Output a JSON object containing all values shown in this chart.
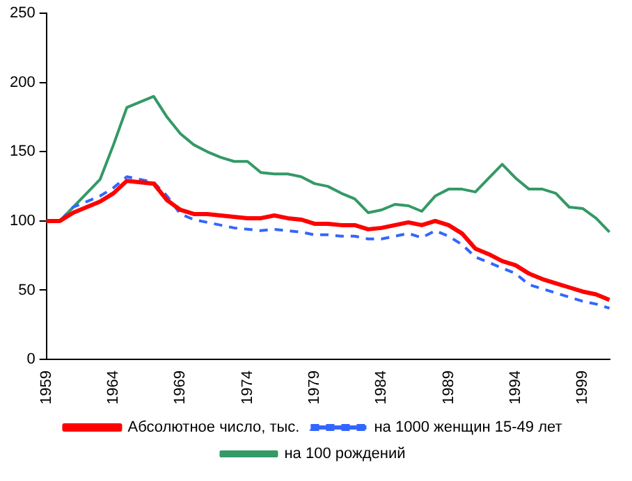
{
  "chart_data": {
    "type": "line",
    "categories": [
      "1959",
      null,
      null,
      null,
      null,
      "1964",
      null,
      null,
      null,
      null,
      "1969",
      null,
      null,
      null,
      null,
      "1974",
      null,
      null,
      null,
      null,
      "1979",
      null,
      null,
      null,
      null,
      "1984",
      null,
      null,
      null,
      null,
      "1989",
      null,
      null,
      null,
      null,
      "1994",
      null,
      null,
      null,
      null,
      "1999",
      null,
      null
    ],
    "series": [
      {
        "name": "Абсолютное число, тыс.",
        "color": "#ff0000",
        "line_style": "solid",
        "values": [
          100,
          100,
          106,
          110,
          114,
          120,
          129,
          128,
          127,
          115,
          108,
          105,
          105,
          104,
          103,
          102,
          102,
          104,
          102,
          101,
          98,
          98,
          97,
          97,
          94,
          95,
          97,
          99,
          97,
          100,
          97,
          91,
          80,
          76,
          71,
          68,
          62,
          58,
          55,
          52,
          49,
          47,
          43
        ]
      },
      {
        "name": "на 1000 женщин 15-49 лет",
        "color": "#3366ff",
        "line_style": "dashed",
        "values": [
          100,
          100,
          110,
          114,
          118,
          124,
          132,
          130,
          128,
          118,
          105,
          101,
          99,
          97,
          95,
          94,
          93,
          94,
          93,
          92,
          90,
          90,
          89,
          89,
          87,
          87,
          89,
          91,
          88,
          93,
          89,
          83,
          74,
          70,
          66,
          62,
          54,
          51,
          48,
          45,
          42,
          40,
          37
        ]
      },
      {
        "name": "на 100 рождений",
        "color": "#339966",
        "line_style": "solid",
        "values": [
          100,
          100,
          110,
          120,
          130,
          155,
          182,
          186,
          190,
          175,
          163,
          155,
          150,
          146,
          143,
          143,
          135,
          134,
          134,
          132,
          127,
          125,
          120,
          116,
          106,
          108,
          112,
          111,
          107,
          118,
          123,
          123,
          121,
          131,
          141,
          131,
          123,
          123,
          120,
          110,
          109,
          102,
          92
        ]
      }
    ],
    "ylim": [
      0,
      250
    ],
    "yticks": [
      0,
      50,
      100,
      150,
      200,
      250
    ],
    "grid": false,
    "legend": "bottom",
    "marker": "none"
  }
}
